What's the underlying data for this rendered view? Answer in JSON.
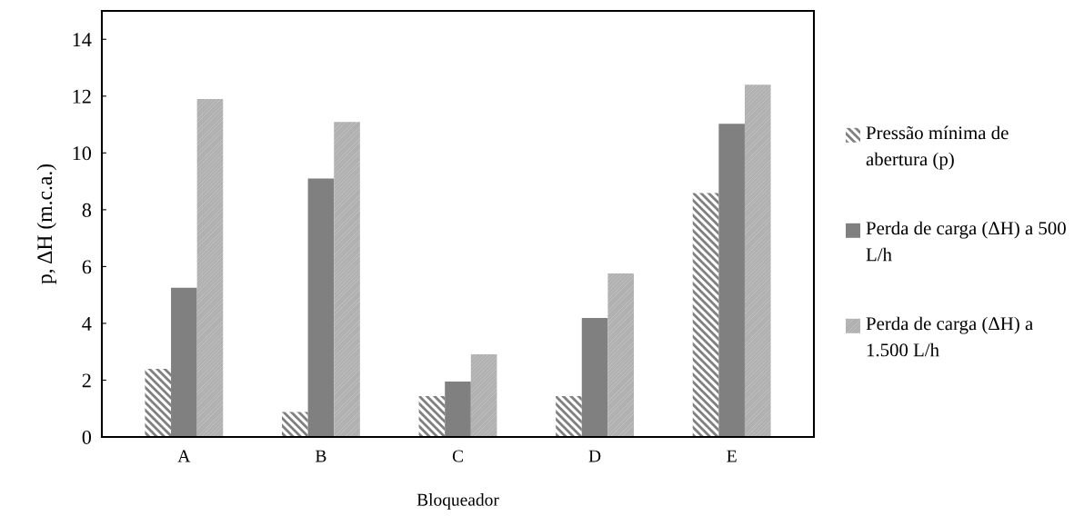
{
  "chart_data": {
    "type": "bar",
    "xlabel": "Bloqueador",
    "ylabel": "p, ΔH (m.c.a.)",
    "categories": [
      "A",
      "B",
      "C",
      "D",
      "E"
    ],
    "series": [
      {
        "name": "Pressão mínima de abertura (p)",
        "color": "#808080",
        "values": [
          2.4,
          0.88,
          1.44,
          1.44,
          8.59
        ]
      },
      {
        "name": "Perda de carga (ΔH) a 500 L/h",
        "color": "#808080",
        "values": [
          5.25,
          9.1,
          1.95,
          4.19,
          11.03
        ]
      },
      {
        "name": "Perda de carga (ΔH) a 1.500 L/h",
        "color": "#b0b0b0",
        "values": [
          11.9,
          11.09,
          2.91,
          5.76,
          12.4
        ]
      }
    ],
    "ylim": [
      0,
      15
    ],
    "yticks": [
      0,
      2,
      4,
      6,
      8,
      10,
      12,
      14
    ],
    "grid": false,
    "legend": "right"
  }
}
